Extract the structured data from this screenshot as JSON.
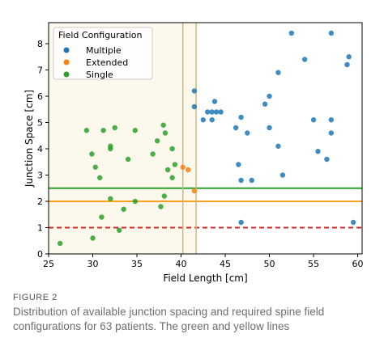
{
  "chart_data": {
    "type": "scatter",
    "xlabel": "Field Length [cm]",
    "ylabel": "Junction Space [cm]",
    "xlim": [
      25,
      60.5
    ],
    "ylim": [
      0,
      8.8
    ],
    "xticks": [
      25,
      30,
      35,
      40,
      45,
      50,
      55,
      60
    ],
    "yticks": [
      0,
      1,
      2,
      3,
      4,
      5,
      6,
      7,
      8
    ],
    "grid": false,
    "legend": {
      "title": "Field Configuration",
      "placement": "top-left"
    },
    "series": [
      {
        "name": "Multiple",
        "color": "#1f77b4",
        "points": [
          [
            52.5,
            8.4
          ],
          [
            57.0,
            8.4
          ],
          [
            54.0,
            7.4
          ],
          [
            59.0,
            7.5
          ],
          [
            58.8,
            7.2
          ],
          [
            51.0,
            6.9
          ],
          [
            41.5,
            6.2
          ],
          [
            41.5,
            5.6
          ],
          [
            50.0,
            6.0
          ],
          [
            49.5,
            5.7
          ],
          [
            43.8,
            5.8
          ],
          [
            43.0,
            5.4
          ],
          [
            43.5,
            5.4
          ],
          [
            44.0,
            5.4
          ],
          [
            44.5,
            5.4
          ],
          [
            42.5,
            5.1
          ],
          [
            43.5,
            5.1
          ],
          [
            46.8,
            5.2
          ],
          [
            55.0,
            5.1
          ],
          [
            57.0,
            5.1
          ],
          [
            46.2,
            4.8
          ],
          [
            47.5,
            4.6
          ],
          [
            50.0,
            4.8
          ],
          [
            57.0,
            4.6
          ],
          [
            51.0,
            4.1
          ],
          [
            55.5,
            3.9
          ],
          [
            56.5,
            3.6
          ],
          [
            46.5,
            3.4
          ],
          [
            46.8,
            2.8
          ],
          [
            48.0,
            2.8
          ],
          [
            51.5,
            3.0
          ],
          [
            46.8,
            1.2
          ],
          [
            59.5,
            1.2
          ]
        ]
      },
      {
        "name": "Extended",
        "color": "#ff7f0e",
        "points": [
          [
            40.2,
            3.3
          ],
          [
            40.8,
            3.2
          ],
          [
            41.5,
            2.4
          ]
        ]
      },
      {
        "name": "Single",
        "color": "#2ca02c",
        "points": [
          [
            29.3,
            4.7
          ],
          [
            31.2,
            4.7
          ],
          [
            32.5,
            4.8
          ],
          [
            34.8,
            4.7
          ],
          [
            38.0,
            4.9
          ],
          [
            38.2,
            4.6
          ],
          [
            37.3,
            4.3
          ],
          [
            32.0,
            4.1
          ],
          [
            32.0,
            4.0
          ],
          [
            36.8,
            3.8
          ],
          [
            39.0,
            4.0
          ],
          [
            29.9,
            3.8
          ],
          [
            39.3,
            3.4
          ],
          [
            34.0,
            3.6
          ],
          [
            30.3,
            3.3
          ],
          [
            38.5,
            3.2
          ],
          [
            39.0,
            2.9
          ],
          [
            30.8,
            2.9
          ],
          [
            32.0,
            2.1
          ],
          [
            34.8,
            2.0
          ],
          [
            38.1,
            2.2
          ],
          [
            37.7,
            1.8
          ],
          [
            33.5,
            1.7
          ],
          [
            31.0,
            1.4
          ],
          [
            33.0,
            0.9
          ],
          [
            30.0,
            0.6
          ],
          [
            26.3,
            0.4
          ]
        ]
      }
    ],
    "reference_lines": [
      {
        "orientation": "horizontal",
        "value": 2.5,
        "color": "#2ca02c",
        "style": "solid"
      },
      {
        "orientation": "horizontal",
        "value": 2.0,
        "color": "#ff9f1a",
        "style": "solid"
      },
      {
        "orientation": "horizontal",
        "value": 1.0,
        "color": "#d62728",
        "style": "dashed"
      },
      {
        "orientation": "vertical",
        "value": 40.2,
        "color": "#c8b98a",
        "style": "solid"
      },
      {
        "orientation": "vertical",
        "value": 41.7,
        "color": "#c8b98a",
        "style": "solid"
      }
    ],
    "shaded_region": {
      "x_from": 25,
      "x_to": 41.7,
      "color": "#fdf8ec"
    }
  },
  "caption": {
    "label": "FIGURE 2",
    "text": "Distribution of available junction spacing and required spine field configurations for 63 patients. The green and yellow lines"
  }
}
